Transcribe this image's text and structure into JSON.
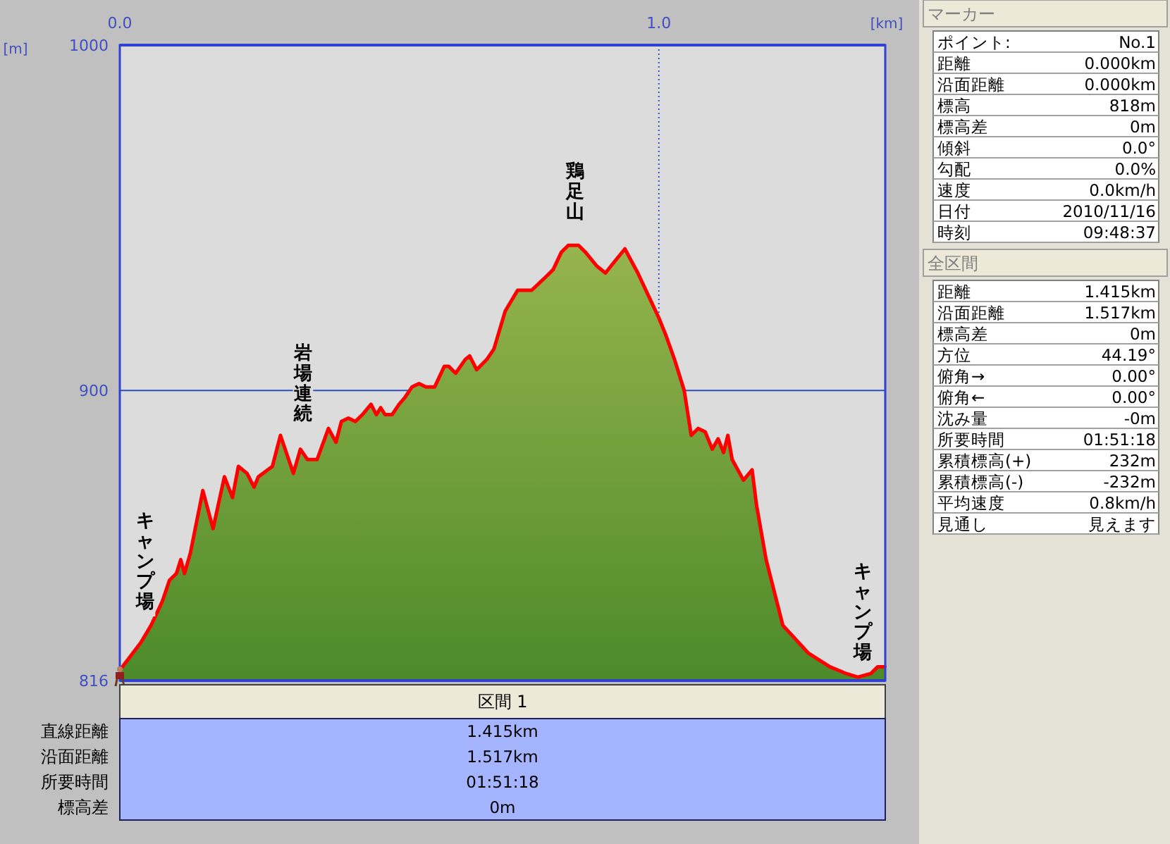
{
  "chart_data": [
    {
      "type": "area",
      "xlabel": "[km]",
      "ylabel": "[m]",
      "xlim": [
        0,
        1.42
      ],
      "ylim": [
        816,
        1000
      ],
      "xticks": [
        {
          "value": 0,
          "label": "0.0"
        },
        {
          "value": 1,
          "label": "1.0"
        }
      ],
      "yticks": [
        816,
        900,
        1000
      ],
      "ref_lines": [
        {
          "axis": "y",
          "value": 900,
          "color": "#3050c0",
          "line_style": "solid"
        },
        {
          "axis": "x",
          "value": 1,
          "color": "#3050c0",
          "line_style": "dotted"
        }
      ],
      "marker": "none",
      "line_style": "solid",
      "x": [
        0,
        0.039,
        0.058,
        0.079,
        0.092,
        0.105,
        0.113,
        0.12,
        0.131,
        0.154,
        0.173,
        0.194,
        0.209,
        0.22,
        0.236,
        0.249,
        0.257,
        0.283,
        0.298,
        0.322,
        0.335,
        0.348,
        0.366,
        0.387,
        0.401,
        0.411,
        0.424,
        0.437,
        0.45,
        0.466,
        0.476,
        0.484,
        0.492,
        0.505,
        0.518,
        0.529,
        0.542,
        0.555,
        0.568,
        0.584,
        0.602,
        0.61,
        0.623,
        0.641,
        0.649,
        0.662,
        0.681,
        0.694,
        0.715,
        0.738,
        0.764,
        0.791,
        0.804,
        0.819,
        0.832,
        0.851,
        0.864,
        0.885,
        0.901,
        0.911,
        0.937,
        0.961,
        0.982,
        1.0,
        1.013,
        1.029,
        1.047,
        1.06,
        1.073,
        1.086,
        1.099,
        1.11,
        1.12,
        1.128,
        1.136,
        1.157,
        1.173,
        1.181,
        1.199,
        1.23,
        1.277,
        1.317,
        1.348,
        1.369,
        1.393,
        1.406,
        1.419
      ],
      "series": [
        {
          "color": "#ff0000",
          "values": [
            819,
            827,
            832,
            839,
            845,
            847,
            851,
            847,
            853,
            871,
            860,
            875,
            869,
            878,
            876,
            872,
            875,
            878,
            887,
            876,
            883,
            880,
            880,
            889,
            885,
            891,
            892,
            891,
            893,
            896,
            893,
            895,
            893,
            893,
            896,
            898,
            901,
            902,
            901,
            901,
            907,
            907,
            905,
            909,
            910,
            906,
            909,
            912,
            923,
            929,
            929,
            933,
            935,
            940,
            942,
            942,
            940,
            936,
            934,
            936,
            941,
            934,
            927,
            921,
            916,
            909,
            900,
            887,
            889,
            888,
            883,
            886,
            882,
            887,
            880,
            874,
            877,
            867,
            851,
            832,
            824,
            820,
            818,
            817,
            818,
            820,
            820
          ]
        }
      ],
      "annotations": [
        "鶏足山",
        "岩場連続",
        "キャンプ場",
        "キャンプ場"
      ]
    },
    {
      "type": "other",
      "title": "マーカー",
      "annotations": [
        "ポイント:",
        "No.1",
        "距離",
        "0.000km",
        "沿面距離",
        "0.000km",
        "標高",
        "818m",
        "標高差",
        "0m",
        "傾斜",
        "0.0°",
        "勾配",
        "0.0%",
        "速度",
        "0.0km/h",
        "日付",
        "2010/11/16",
        "時刻",
        "09:48:37"
      ]
    },
    {
      "type": "other",
      "title": "全区間",
      "annotations": [
        "距離",
        "1.415km",
        "沿面距離",
        "1.517km",
        "標高差",
        "0m",
        "方位",
        "44.19°",
        "俯角→",
        "0.00°",
        "俯角←",
        "0.00°",
        "沈み量",
        "-0m",
        "所要時間",
        "01:51:18",
        "累積標高(+)",
        "232m",
        "累積標高(-)",
        "-232m",
        "平均速度",
        "0.8km/h",
        "見通し",
        "見えます"
      ]
    },
    {
      "type": "other",
      "title": "区間 1",
      "annotations": [
        "直線距離",
        "1.415km",
        "沿面距離",
        "1.517km",
        "所要時間",
        "01:51:18",
        "標高差",
        "0m"
      ]
    }
  ]
}
